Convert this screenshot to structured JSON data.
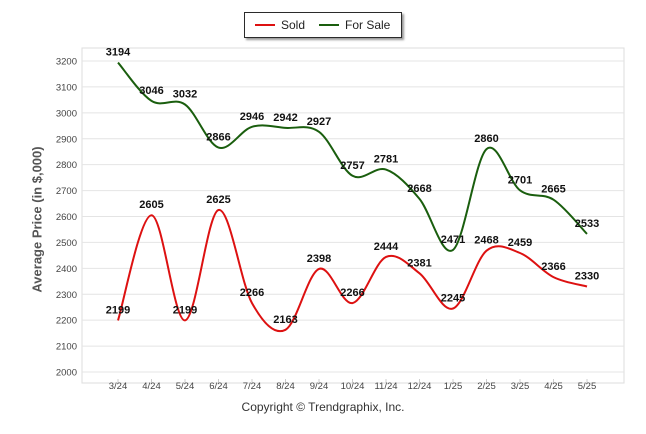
{
  "chart_data": {
    "type": "line",
    "ylabel": "Average Price (in $,000)",
    "ylim": [
      2000,
      3200
    ],
    "yticks": [
      2000,
      2100,
      2200,
      2300,
      2400,
      2500,
      2600,
      2700,
      2800,
      2900,
      3000,
      3100,
      3200
    ],
    "categories": [
      "3/24",
      "4/24",
      "5/24",
      "6/24",
      "7/24",
      "8/24",
      "9/24",
      "10/24",
      "11/24",
      "12/24",
      "1/25",
      "2/25",
      "3/25",
      "4/25",
      "5/25"
    ],
    "grid": true,
    "legend_position": "top-center",
    "series": [
      {
        "name": "Sold",
        "color": "#dd1111",
        "values": [
          2199,
          2605,
          2199,
          2625,
          2266,
          2163,
          2398,
          2266,
          2444,
          2381,
          2245,
          2468,
          2459,
          2366,
          2330
        ]
      },
      {
        "name": "For Sale",
        "color": "#1a5e0e",
        "values": [
          3194,
          3046,
          3032,
          2866,
          2946,
          2942,
          2927,
          2757,
          2781,
          2668,
          2471,
          2860,
          2701,
          2665,
          2533
        ]
      }
    ],
    "credit": "Copyright © Trendgraphix, Inc."
  }
}
